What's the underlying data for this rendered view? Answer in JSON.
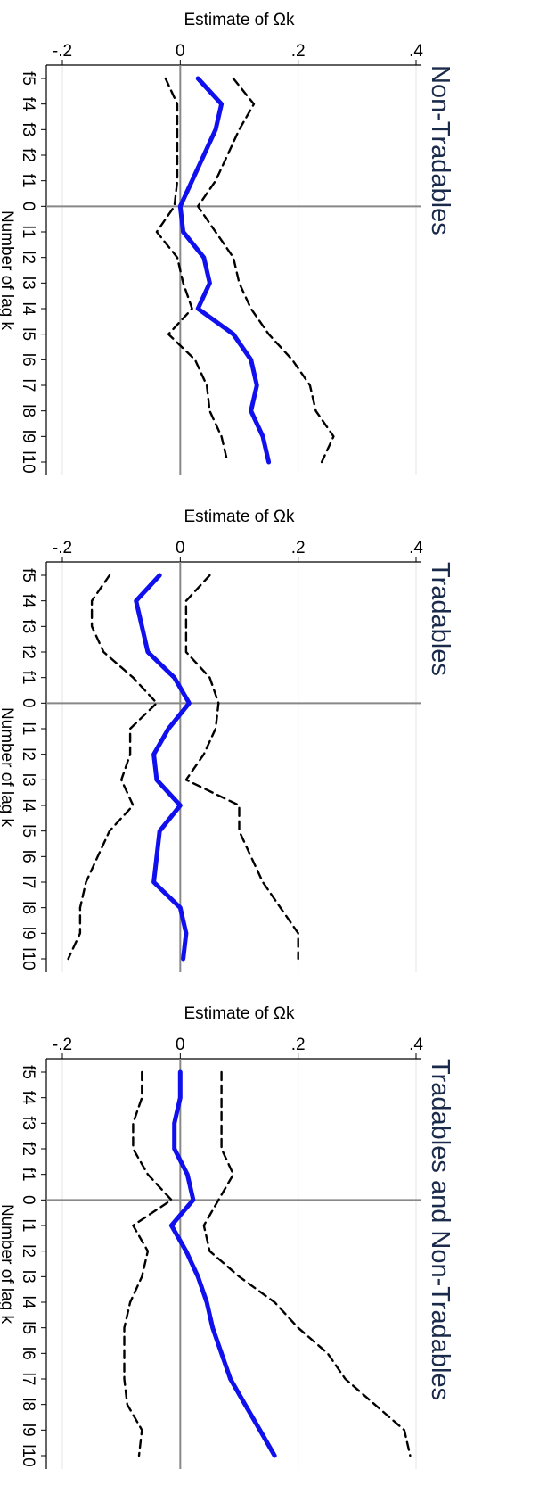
{
  "colors": {
    "estimate_line": "#1010ee",
    "ci_line": "#000000",
    "zero_line": "#888888",
    "grid": "#e6e6e6",
    "title": "#1a2a4a"
  },
  "chart_data": [
    {
      "type": "line",
      "title": "Tradables and Non-Tradables",
      "xlabel": "Number of lag k",
      "ylabel": "Estimate of Ωk",
      "categories": [
        "f5",
        "f4",
        "f3",
        "f2",
        "f1",
        "0",
        "l1",
        "l2",
        "l3",
        "l4",
        "l5",
        "l6",
        "l7",
        "l8",
        "l9",
        "l10"
      ],
      "tick_labels": [
        "f5",
        "f4",
        "f3",
        "f2",
        "f1",
        "0",
        "l1",
        "l2",
        "l3",
        "l4",
        "l5",
        "l6",
        "l7",
        "l8",
        "l9",
        "l10"
      ],
      "yticks": [
        ".4",
        ".2",
        "0",
        "-.2"
      ],
      "ylim": [
        -0.2,
        0.4
      ],
      "grid": true,
      "series": [
        {
          "values": [
            0.0,
            0.0,
            -0.01,
            -0.01,
            0.012,
            0.022,
            -0.015,
            0.01,
            0.03,
            0.045,
            0.055,
            0.07,
            0.085,
            0.11,
            0.135,
            0.16
          ],
          "style": "solid"
        },
        {
          "values": [
            0.07,
            0.07,
            0.07,
            0.07,
            0.09,
            0.065,
            0.04,
            0.05,
            0.1,
            0.16,
            0.2,
            0.25,
            0.28,
            0.33,
            0.38,
            0.39
          ],
          "style": "dashed"
        },
        {
          "values": [
            -0.065,
            -0.065,
            -0.08,
            -0.08,
            -0.055,
            -0.015,
            -0.08,
            -0.055,
            -0.065,
            -0.085,
            -0.095,
            -0.095,
            -0.095,
            -0.09,
            -0.065,
            -0.07
          ],
          "style": "dashed"
        }
      ]
    },
    {
      "type": "line",
      "title": "Tradables",
      "xlabel": "Number of lag k",
      "ylabel": "Estimate of Ωk",
      "categories": [
        "f5",
        "f4",
        "f3",
        "f2",
        "f1",
        "0",
        "l1",
        "l2",
        "l3",
        "l4",
        "l5",
        "l6",
        "l7",
        "l8",
        "l9",
        "l10"
      ],
      "tick_labels": [
        "f5",
        "f4",
        "f3",
        "f2",
        "f1",
        "0",
        "l1",
        "l2",
        "l3",
        "l4",
        "l5",
        "l6",
        "l7",
        "l8",
        "l9",
        "l10"
      ],
      "yticks": [
        ".4",
        ".2",
        "0",
        "-.2"
      ],
      "ylim": [
        -0.2,
        0.4
      ],
      "grid": true,
      "series": [
        {
          "values": [
            -0.035,
            -0.075,
            -0.065,
            -0.055,
            -0.01,
            0.015,
            -0.02,
            -0.045,
            -0.04,
            0.0,
            -0.035,
            -0.04,
            -0.045,
            0.0,
            0.01,
            0.005
          ],
          "style": "solid"
        },
        {
          "values": [
            0.05,
            0.01,
            0.01,
            0.01,
            0.05,
            0.065,
            0.06,
            0.04,
            0.01,
            0.1,
            0.1,
            0.12,
            0.14,
            0.17,
            0.2,
            0.2
          ],
          "style": "dashed"
        },
        {
          "values": [
            -0.12,
            -0.15,
            -0.15,
            -0.13,
            -0.08,
            -0.04,
            -0.085,
            -0.085,
            -0.1,
            -0.08,
            -0.12,
            -0.14,
            -0.16,
            -0.17,
            -0.17,
            -0.19
          ],
          "style": "dashed"
        }
      ]
    },
    {
      "type": "line",
      "title": "Non-Tradables",
      "xlabel": "Number of lag k",
      "ylabel": "Estimate of Ωk",
      "categories": [
        "f5",
        "f4",
        "f3",
        "f2",
        "f1",
        "0",
        "l1",
        "l2",
        "l3",
        "l4",
        "l5",
        "l6",
        "l7",
        "l8",
        "l9",
        "l10"
      ],
      "tick_labels": [
        "f5",
        "f4",
        "f3",
        "f2",
        "f1",
        "0",
        "l1",
        "l2",
        "l3",
        "l4",
        "l5",
        "l6",
        "l7",
        "l8",
        "l9",
        "l10"
      ],
      "yticks": [
        ".4",
        ".2",
        "0",
        "-.2"
      ],
      "ylim": [
        -0.2,
        0.4
      ],
      "grid": true,
      "series": [
        {
          "values": [
            0.03,
            0.07,
            0.06,
            0.04,
            0.02,
            0.0,
            0.005,
            0.04,
            0.05,
            0.03,
            0.09,
            0.12,
            0.13,
            0.12,
            0.14,
            0.15
          ],
          "style": "solid"
        },
        {
          "values": [
            0.09,
            0.125,
            0.1,
            0.08,
            0.06,
            0.03,
            0.06,
            0.09,
            0.1,
            0.12,
            0.15,
            0.19,
            0.22,
            0.23,
            0.26,
            0.24
          ],
          "style": "dashed"
        },
        {
          "values": [
            -0.025,
            -0.005,
            -0.005,
            -0.005,
            -0.005,
            -0.01,
            -0.04,
            -0.005,
            0.005,
            0.02,
            -0.02,
            0.025,
            0.045,
            0.05,
            0.07,
            0.08
          ],
          "style": "dashed"
        }
      ]
    }
  ]
}
